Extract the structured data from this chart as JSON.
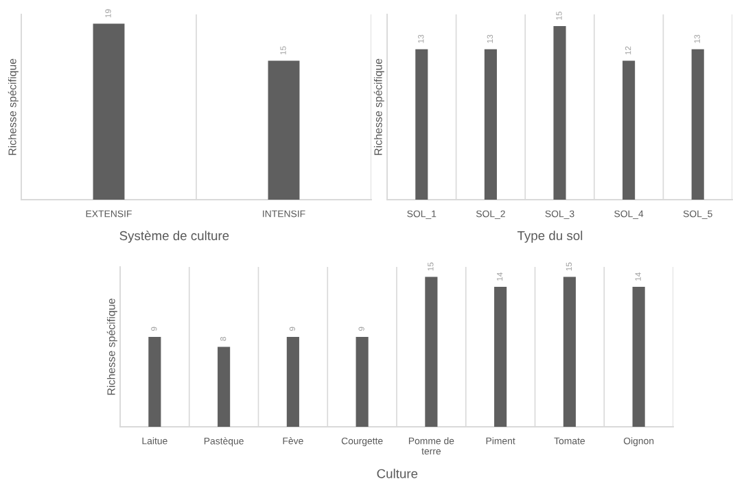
{
  "chart_data": [
    {
      "type": "bar",
      "categories": [
        "EXTENSIF",
        "INTENSIF"
      ],
      "values": [
        19,
        15
      ],
      "color": "#5f5f5f",
      "xlabel": "Système de culture",
      "ylabel": "Richesse spécifique",
      "ylim": [
        0,
        20
      ],
      "data_labels": true,
      "grid": "x",
      "tick_labels": "x"
    },
    {
      "type": "bar",
      "categories": [
        "SOL_1",
        "SOL_2",
        "SOL_3",
        "SOL_4",
        "SOL_5"
      ],
      "values": [
        13,
        13,
        15,
        12,
        13
      ],
      "color": "#5f5f5f",
      "xlabel": "Type du sol",
      "ylabel": "Richesse spécifique",
      "ylim": [
        0,
        16
      ],
      "data_labels": true,
      "grid": "x",
      "tick_labels": "x"
    },
    {
      "type": "bar",
      "categories": [
        "Laitue",
        "Pastèque",
        "Fève",
        "Courgette",
        "Pomme de terre",
        "Piment",
        "Tomate",
        "Oignon"
      ],
      "values": [
        9,
        8,
        9,
        9,
        15,
        14,
        15,
        14
      ],
      "color": "#5f5f5f",
      "xlabel": "Culture",
      "ylabel": "Richesse spécifique",
      "ylim": [
        0,
        16
      ],
      "data_labels": true,
      "grid": "x",
      "tick_labels": "x"
    }
  ]
}
